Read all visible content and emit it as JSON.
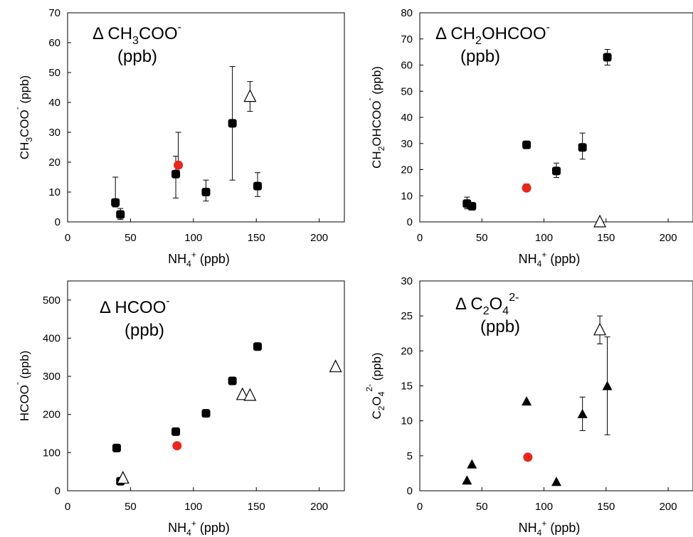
{
  "chart_data": [
    {
      "type": "scatter",
      "panel": "acetate",
      "annotation": {
        "prefix": "Δ CH",
        "sub1": "3",
        "mid": "COO",
        "sup": "-",
        "unit": "(ppb)"
      },
      "ylabel": {
        "a": "CH",
        "sub1": "3",
        "b": "COO",
        "sup": "-",
        "c": " (ppb)"
      },
      "xlabel": {
        "a": "NH",
        "sub": "4",
        "sup": "+",
        "b": " (ppb)"
      },
      "xlim": [
        0,
        220
      ],
      "ylim": [
        0,
        70
      ],
      "xticks": [
        0,
        50,
        100,
        150,
        200
      ],
      "yticks": [
        0,
        10,
        20,
        30,
        40,
        50,
        60,
        70
      ],
      "series": [
        {
          "marker": "square",
          "color": "#000000",
          "points": [
            {
              "x": 38,
              "y": 6.5,
              "lo": 5,
              "hi": 15
            },
            {
              "x": 42,
              "y": 2.5,
              "lo": 0.8,
              "hi": 4.5
            },
            {
              "x": 86,
              "y": 16,
              "lo": 8,
              "hi": 22
            },
            {
              "x": 110,
              "y": 10,
              "lo": 7,
              "hi": 14
            },
            {
              "x": 131,
              "y": 33,
              "lo": 14,
              "hi": 52
            },
            {
              "x": 151,
              "y": 12,
              "lo": 8.5,
              "hi": 16.5
            }
          ]
        },
        {
          "marker": "circle",
          "color": "#e8261c",
          "points": [
            {
              "x": 88,
              "y": 19,
              "lo": 19,
              "hi": 30
            }
          ]
        },
        {
          "marker": "open-triangle",
          "color": "#000000",
          "points": [
            {
              "x": 145,
              "y": 42,
              "lo": 37,
              "hi": 47
            }
          ]
        }
      ]
    },
    {
      "type": "scatter",
      "panel": "glycolate",
      "annotation": {
        "prefix": "Δ CH",
        "sub1": "2",
        "mid": "OHCOO",
        "sup": "-",
        "unit": "(ppb)"
      },
      "ylabel": {
        "a": "CH",
        "sub1": "2",
        "b": "OHCOO",
        "sup": "-",
        "c": " (ppb)"
      },
      "xlabel": {
        "a": "NH",
        "sub": "4",
        "sup": "+",
        "b": " (ppb)"
      },
      "xlim": [
        0,
        220
      ],
      "ylim": [
        0,
        80
      ],
      "xticks": [
        0,
        50,
        100,
        150,
        200
      ],
      "yticks": [
        0,
        10,
        20,
        30,
        40,
        50,
        60,
        70,
        80
      ],
      "series": [
        {
          "marker": "square",
          "color": "#000000",
          "points": [
            {
              "x": 38,
              "y": 7,
              "lo": 5,
              "hi": 9.5
            },
            {
              "x": 42,
              "y": 6,
              "lo": 5,
              "hi": 7
            },
            {
              "x": 86,
              "y": 29.5,
              "lo": 29.5,
              "hi": 29.5
            },
            {
              "x": 110,
              "y": 19.5,
              "lo": 17,
              "hi": 22.5
            },
            {
              "x": 131,
              "y": 28.5,
              "lo": 24,
              "hi": 34
            },
            {
              "x": 151,
              "y": 63,
              "lo": 60,
              "hi": 66
            }
          ]
        },
        {
          "marker": "circle",
          "color": "#e8261c",
          "points": [
            {
              "x": 86,
              "y": 13,
              "lo": 12,
              "hi": 14.5
            }
          ]
        },
        {
          "marker": "open-triangle",
          "color": "#000000",
          "points": [
            {
              "x": 145,
              "y": 0,
              "lo": 0,
              "hi": 0
            }
          ]
        }
      ]
    },
    {
      "type": "scatter",
      "panel": "formate",
      "annotation": {
        "prefix": "Δ HCOO",
        "sub1": "",
        "mid": "",
        "sup": "-",
        "unit": "(ppb)"
      },
      "ylabel": {
        "a": "HCOO",
        "sub1": "",
        "b": "",
        "sup": "-",
        "c": " (ppb)"
      },
      "xlabel": {
        "a": "NH",
        "sub": "4",
        "sup": "+",
        "b": " (ppb)"
      },
      "xlim": [
        0,
        220
      ],
      "ylim": [
        0,
        550
      ],
      "xticks": [
        0,
        50,
        100,
        150,
        200
      ],
      "yticks": [
        0,
        100,
        200,
        300,
        400,
        500
      ],
      "series": [
        {
          "marker": "square",
          "color": "#000000",
          "points": [
            {
              "x": 39,
              "y": 112,
              "lo": 112,
              "hi": 112
            },
            {
              "x": 42,
              "y": 25,
              "lo": 25,
              "hi": 25
            },
            {
              "x": 86,
              "y": 155,
              "lo": 155,
              "hi": 155
            },
            {
              "x": 110,
              "y": 203,
              "lo": 203,
              "hi": 203
            },
            {
              "x": 131,
              "y": 288,
              "lo": 288,
              "hi": 288
            },
            {
              "x": 151,
              "y": 378,
              "lo": 378,
              "hi": 378
            }
          ]
        },
        {
          "marker": "circle",
          "color": "#e8261c",
          "points": [
            {
              "x": 87,
              "y": 118,
              "lo": 118,
              "hi": 118
            }
          ]
        },
        {
          "marker": "open-triangle",
          "color": "#000000",
          "points": [
            {
              "x": 44,
              "y": 33,
              "lo": 33,
              "hi": 33
            },
            {
              "x": 139,
              "y": 252,
              "lo": 252,
              "hi": 252
            },
            {
              "x": 145,
              "y": 250,
              "lo": 250,
              "hi": 250
            },
            {
              "x": 213,
              "y": 325,
              "lo": 325,
              "hi": 325
            }
          ]
        }
      ]
    },
    {
      "type": "scatter",
      "panel": "oxalate",
      "annotation": {
        "prefix": "Δ C",
        "sub1": "2",
        "mid": "O",
        "sub2": "4",
        "sup": "2-",
        "unit": "(ppb)"
      },
      "ylabel": {
        "a": "C",
        "sub1": "2",
        "b": "O",
        "sub2": "4",
        "sup": "2-",
        "c": " (ppb)"
      },
      "xlabel": {
        "a": "NH",
        "sub": "4",
        "sup": "+",
        "b": " (ppb)"
      },
      "xlim": [
        0,
        220
      ],
      "ylim": [
        0,
        30
      ],
      "xticks": [
        0,
        50,
        100,
        150,
        200
      ],
      "yticks": [
        0,
        5,
        10,
        15,
        20,
        25,
        30
      ],
      "series": [
        {
          "marker": "triangle",
          "color": "#000000",
          "points": [
            {
              "x": 38,
              "y": 1.5,
              "lo": 1.5,
              "hi": 1.5
            },
            {
              "x": 42,
              "y": 3.8,
              "lo": 3.8,
              "hi": 3.8
            },
            {
              "x": 86,
              "y": 12.8,
              "lo": 12.8,
              "hi": 12.8
            },
            {
              "x": 110,
              "y": 1.3,
              "lo": 1.3,
              "hi": 1.3
            },
            {
              "x": 131,
              "y": 11,
              "lo": 8.6,
              "hi": 13.4
            },
            {
              "x": 151,
              "y": 15,
              "lo": 8,
              "hi": 22
            }
          ]
        },
        {
          "marker": "circle",
          "color": "#e8261c",
          "points": [
            {
              "x": 87,
              "y": 4.8,
              "lo": 4.8,
              "hi": 4.8
            }
          ]
        },
        {
          "marker": "open-triangle",
          "color": "#000000",
          "points": [
            {
              "x": 145,
              "y": 23,
              "lo": 21,
              "hi": 25
            }
          ]
        }
      ]
    }
  ]
}
